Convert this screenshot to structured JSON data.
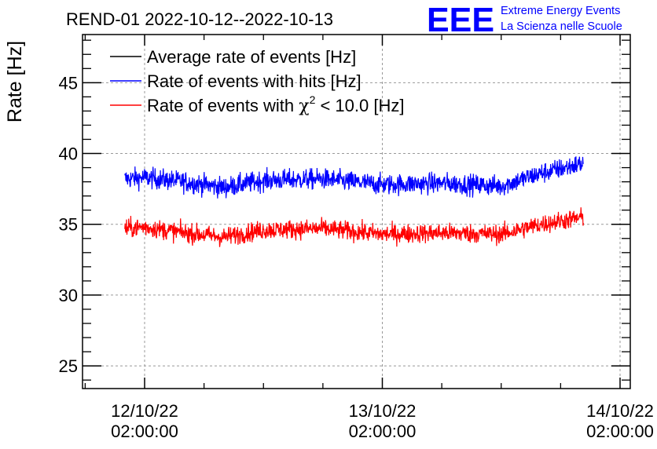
{
  "chart_data": {
    "type": "line",
    "title": "REND-01 2022-10-12--2022-10-13",
    "ylabel": "Rate [Hz]",
    "xlabel": "",
    "ylim": [
      23.4,
      48.4
    ],
    "y_ticks": [
      25,
      30,
      35,
      40,
      45
    ],
    "x_ticks": [
      {
        "date": "12/10/22",
        "time": "02:00:00",
        "hours_from_start": 0
      },
      {
        "date": "13/10/22",
        "time": "02:00:00",
        "hours_from_start": 24
      },
      {
        "date": "14/10/22",
        "time": "02:00:00",
        "hours_from_start": 48
      }
    ],
    "xlim_hours": [
      -6,
      48.3
    ],
    "grid": true,
    "legend_position": "top-left",
    "series": [
      {
        "name": "Average rate of events [Hz]",
        "legend_label_main": "Average rate of events [Hz]",
        "color": "#000000",
        "start_hour": -2,
        "end_hour": 44.3,
        "points": []
      },
      {
        "name": "Rate of events with hits [Hz]",
        "legend_label_main": "Rate of events with hits [Hz]",
        "color": "#0000ff",
        "start_hour": -2,
        "end_hour": 44.3,
        "anchors_hours": [
          -2,
          0,
          4,
          8,
          12,
          18,
          24,
          30,
          36,
          40,
          44.3
        ],
        "anchors_values": [
          38.2,
          38.3,
          38.0,
          37.6,
          38.1,
          38.2,
          37.8,
          37.9,
          37.7,
          38.6,
          39.3
        ],
        "noise_amplitude": 1.2
      },
      {
        "name": "Rate of events with χ2 < 10.0 [Hz]",
        "legend_label_main": "Rate of events with ",
        "legend_label_chi": "χ",
        "legend_label_sup": "2",
        "legend_label_rest": " < 10.0 [Hz]",
        "color": "#ff0000",
        "start_hour": -2,
        "end_hour": 44.3,
        "anchors_hours": [
          -2,
          0,
          4,
          8,
          12,
          18,
          24,
          30,
          36,
          40,
          44.3
        ],
        "anchors_values": [
          34.7,
          34.8,
          34.4,
          34.1,
          34.6,
          34.7,
          34.3,
          34.4,
          34.3,
          35.0,
          35.5
        ],
        "noise_amplitude": 1.1
      }
    ]
  },
  "logo": {
    "text": "EEE",
    "line1": "Extreme Energy Events",
    "line2": "La Scienza nelle Scuole",
    "color": "#0000ff"
  }
}
